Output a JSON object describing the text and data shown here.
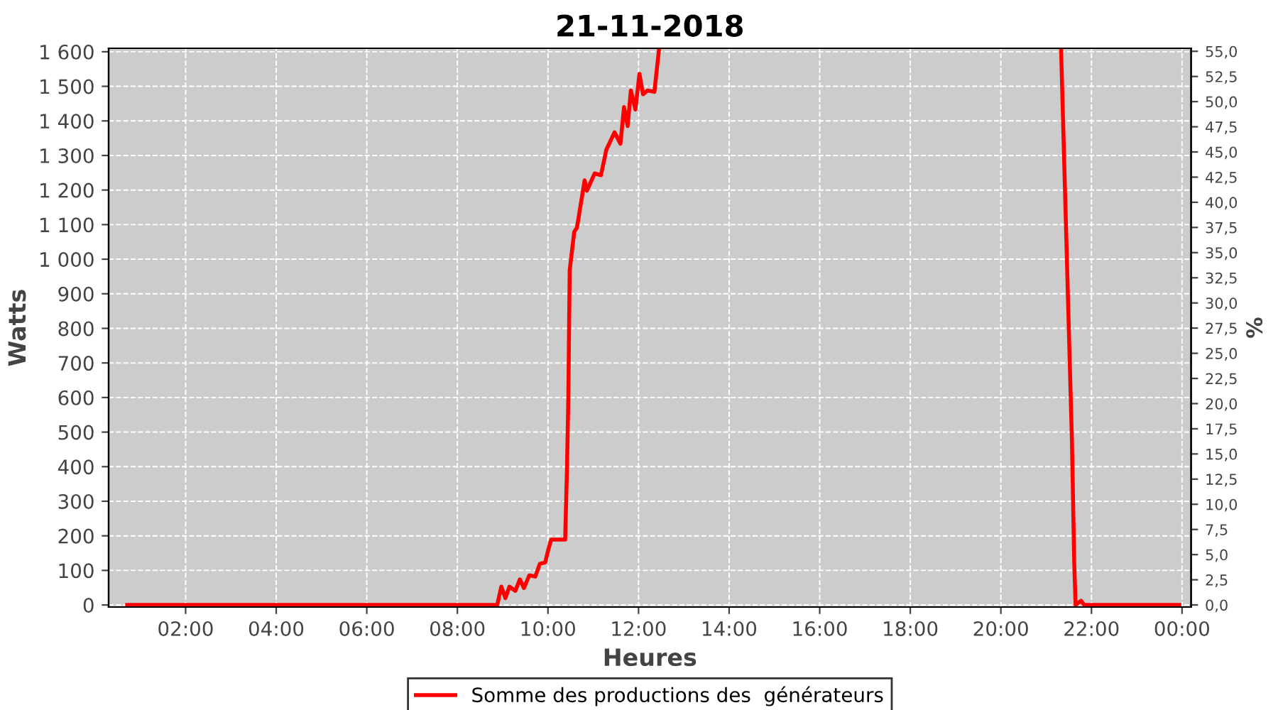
{
  "chart_data": {
    "type": "line",
    "title": "21-11-2018",
    "xlabel": "Heures",
    "ylabel": "Watts",
    "y2label": "%",
    "series": [
      {
        "name": "Somme des productions des  générateurs",
        "color": "#ff0000",
        "x": [
          0.71,
          8.88,
          8.97,
          9.06,
          9.15,
          9.28,
          9.38,
          9.47,
          9.59,
          9.72,
          9.82,
          9.94,
          10.0,
          10.07,
          10.38,
          10.42,
          10.45,
          10.48,
          10.58,
          10.64,
          10.81,
          10.86,
          11.03,
          11.17,
          11.29,
          11.47,
          11.6,
          11.68,
          11.76,
          11.83,
          11.93,
          12.02,
          12.1,
          12.2,
          12.35,
          12.45,
          16.9,
          21.33,
          21.57,
          21.62,
          21.65,
          21.77,
          21.84,
          23.94
        ],
        "values": [
          0,
          0,
          53,
          20,
          53,
          41,
          74,
          49,
          86,
          82,
          119,
          123,
          156,
          189,
          189,
          394,
          599,
          968,
          1079,
          1091,
          1228,
          1198,
          1248,
          1243,
          1317,
          1367,
          1334,
          1440,
          1385,
          1488,
          1433,
          1536,
          1477,
          1488,
          1484,
          1605,
          null,
          1605,
          469,
          120,
          0,
          12,
          0,
          0
        ]
      }
    ],
    "xlim": [
      0.3,
      24.2
    ],
    "xticks": [
      {
        "value": 2,
        "label": "02:00"
      },
      {
        "value": 4,
        "label": "04:00"
      },
      {
        "value": 6,
        "label": "06:00"
      },
      {
        "value": 8,
        "label": "08:00"
      },
      {
        "value": 10,
        "label": "10:00"
      },
      {
        "value": 12,
        "label": "12:00"
      },
      {
        "value": 14,
        "label": "14:00"
      },
      {
        "value": 16,
        "label": "16:00"
      },
      {
        "value": 18,
        "label": "18:00"
      },
      {
        "value": 20,
        "label": "20:00"
      },
      {
        "value": 22,
        "label": "22:00"
      },
      {
        "value": 24,
        "label": "00:00"
      }
    ],
    "ylim": [
      -6,
      1610
    ],
    "yticks": [
      0,
      100,
      200,
      300,
      400,
      500,
      600,
      700,
      800,
      900,
      {
        "value": 1000,
        "label": "1 000"
      },
      {
        "value": 1100,
        "label": "1 100"
      },
      {
        "value": 1200,
        "label": "1 200"
      },
      {
        "value": 1300,
        "label": "1 300"
      },
      {
        "value": 1400,
        "label": "1 400"
      },
      {
        "value": 1500,
        "label": "1 500"
      },
      {
        "value": 1600,
        "label": "1 600"
      }
    ],
    "y2lim": [
      -0.21,
      55.3
    ],
    "y2ticks": [
      {
        "value": 0,
        "label": "0,0"
      },
      {
        "value": 2.5,
        "label": "2,5"
      },
      {
        "value": 5,
        "label": "5,0"
      },
      {
        "value": 7.5,
        "label": "7,5"
      },
      {
        "value": 10,
        "label": "10,0"
      },
      {
        "value": 12.5,
        "label": "12,5"
      },
      {
        "value": 15,
        "label": "15,0"
      },
      {
        "value": 17.5,
        "label": "17,5"
      },
      {
        "value": 20,
        "label": "20,0"
      },
      {
        "value": 22.5,
        "label": "22,5"
      },
      {
        "value": 25,
        "label": "25,0"
      },
      {
        "value": 27.5,
        "label": "27,5"
      },
      {
        "value": 30,
        "label": "30,0"
      },
      {
        "value": 32.5,
        "label": "32,5"
      },
      {
        "value": 35,
        "label": "35,0"
      },
      {
        "value": 37.5,
        "label": "37,5"
      },
      {
        "value": 40,
        "label": "40,0"
      },
      {
        "value": 42.5,
        "label": "42,5"
      },
      {
        "value": 45,
        "label": "45,0"
      },
      {
        "value": 47.5,
        "label": "47,5"
      },
      {
        "value": 50,
        "label": "50,0"
      },
      {
        "value": 52.5,
        "label": "52,5"
      },
      {
        "value": 55,
        "label": "55,0"
      }
    ],
    "grid": true,
    "legend": "bottom",
    "line_style": "solid"
  }
}
